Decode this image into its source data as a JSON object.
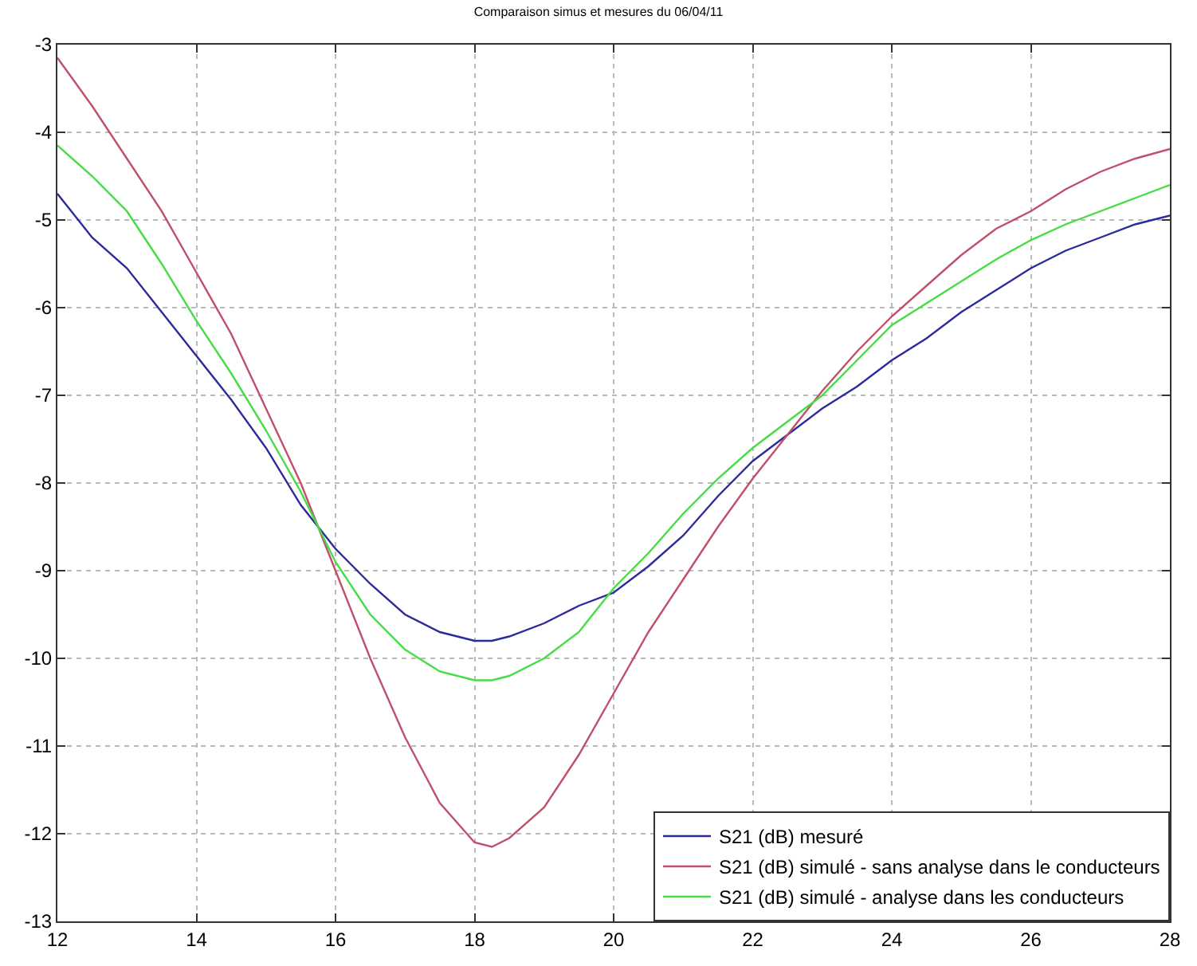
{
  "chart_data": {
    "type": "line",
    "title": "Comparaison simus et mesures du 06/04/11",
    "x": [
      12,
      12.5,
      13,
      13.5,
      14,
      14.5,
      15,
      15.5,
      16,
      16.5,
      17,
      17.5,
      18,
      18.25,
      18.5,
      19,
      19.5,
      20,
      20.5,
      21,
      21.5,
      22,
      22.5,
      23,
      23.5,
      24,
      24.5,
      25,
      25.5,
      26,
      26.5,
      27,
      27.5,
      28
    ],
    "series": [
      {
        "name": "S21 (dB) mesuré",
        "color": "#2b2b9c",
        "values": [
          -4.7,
          -5.2,
          -5.55,
          -6.05,
          -6.55,
          -7.05,
          -7.6,
          -8.25,
          -8.75,
          -9.15,
          -9.5,
          -9.7,
          -9.8,
          -9.8,
          -9.75,
          -9.6,
          -9.4,
          -9.25,
          -8.95,
          -8.6,
          -8.15,
          -7.75,
          -7.45,
          -7.15,
          -6.9,
          -6.6,
          -6.35,
          -6.05,
          -5.8,
          -5.55,
          -5.35,
          -5.2,
          -5.05,
          -4.95
        ]
      },
      {
        "name": "S21 (dB) simulé - sans analyse dans le conducteurs",
        "color": "#c0506a",
        "values": [
          -3.15,
          -3.7,
          -4.3,
          -4.9,
          -5.6,
          -6.3,
          -7.15,
          -8.0,
          -9.0,
          -10.0,
          -10.9,
          -11.65,
          -12.1,
          -12.15,
          -12.05,
          -11.7,
          -11.1,
          -10.4,
          -9.7,
          -9.1,
          -8.5,
          -7.95,
          -7.45,
          -6.95,
          -6.5,
          -6.1,
          -5.75,
          -5.4,
          -5.1,
          -4.9,
          -4.65,
          -4.45,
          -4.3,
          -4.19
        ]
      },
      {
        "name": "S21 (dB) simulé - analyse dans les conducteurs",
        "color": "#44dd44",
        "values": [
          -4.15,
          -4.5,
          -4.9,
          -5.5,
          -6.15,
          -6.75,
          -7.4,
          -8.1,
          -8.9,
          -9.5,
          -9.9,
          -10.15,
          -10.25,
          -10.25,
          -10.2,
          -10.0,
          -9.7,
          -9.2,
          -8.8,
          -8.35,
          -7.95,
          -7.6,
          -7.3,
          -7.0,
          -6.6,
          -6.2,
          -5.95,
          -5.7,
          -5.45,
          -5.23,
          -5.05,
          -4.9,
          -4.75,
          -4.6
        ]
      }
    ],
    "xlim": [
      12,
      28
    ],
    "xticks": [
      12,
      14,
      16,
      18,
      20,
      22,
      24,
      26,
      28
    ],
    "ylim": [
      -13,
      -3
    ],
    "yticks": [
      -13,
      -12,
      -11,
      -10,
      -9,
      -8,
      -7,
      -6,
      -5,
      -4,
      -3
    ],
    "grid": true,
    "legend": "bottom right",
    "line_style": "solid",
    "marker": "none"
  }
}
